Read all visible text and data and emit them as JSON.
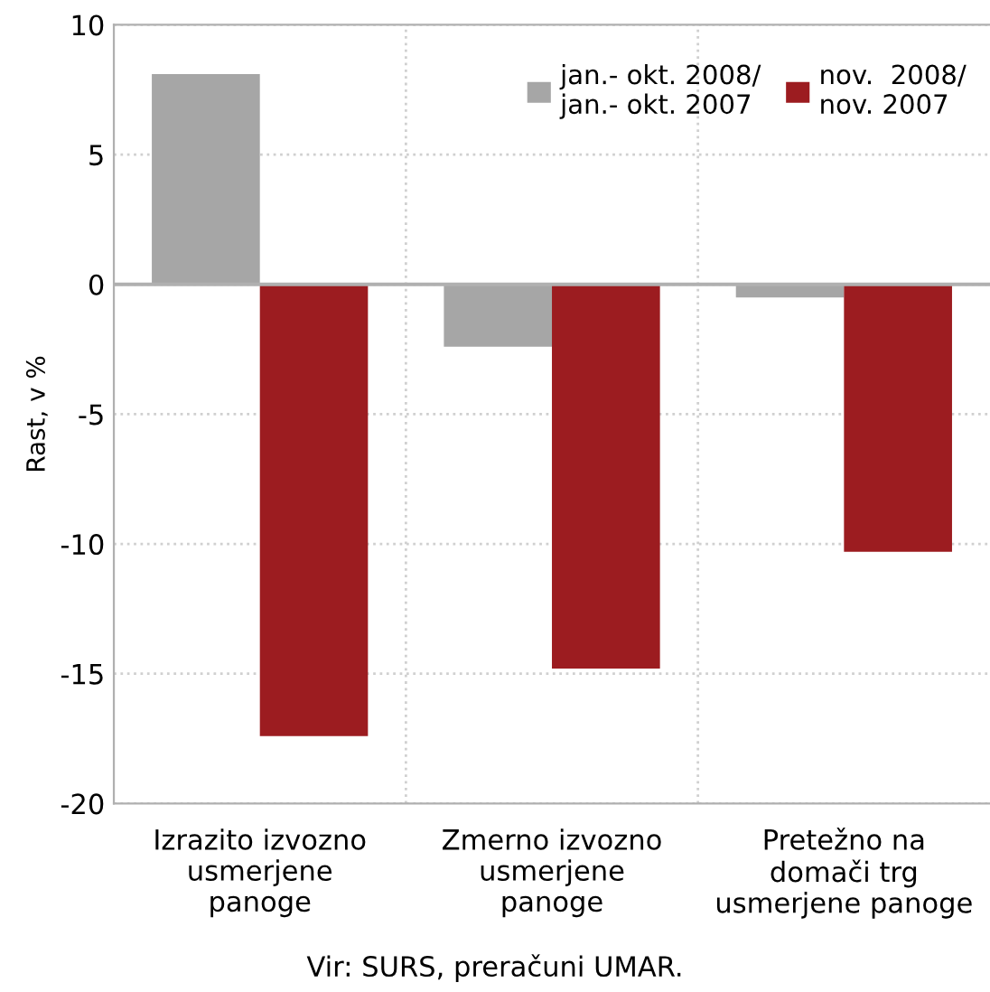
{
  "chart_data": {
    "type": "bar",
    "ylabel": "Rast, v %",
    "categories": [
      "Izrazito izvozno\nusmerjene\npanoge",
      "Zmerno izvozno\nusmerjene\npanoge",
      "Pretežno na\ndomači trg\nusmerjene panoge"
    ],
    "series": [
      {
        "name": "jan.- okt. 2008/\njan.- okt. 2007",
        "color": "#a6a6a6",
        "values": [
          8.1,
          -2.4,
          -0.5
        ]
      },
      {
        "name": "nov.  2008/\nnov. 2007",
        "color": "#9c1c20",
        "values": [
          -17.4,
          -14.8,
          -10.3
        ]
      }
    ],
    "ylim": [
      -20,
      10
    ],
    "yticks": [
      -20,
      -15,
      -10,
      -5,
      0,
      5,
      10
    ],
    "grid": true,
    "legend": "top right",
    "annotations": [
      "Vir: SURS, preračuni UMAR."
    ]
  }
}
